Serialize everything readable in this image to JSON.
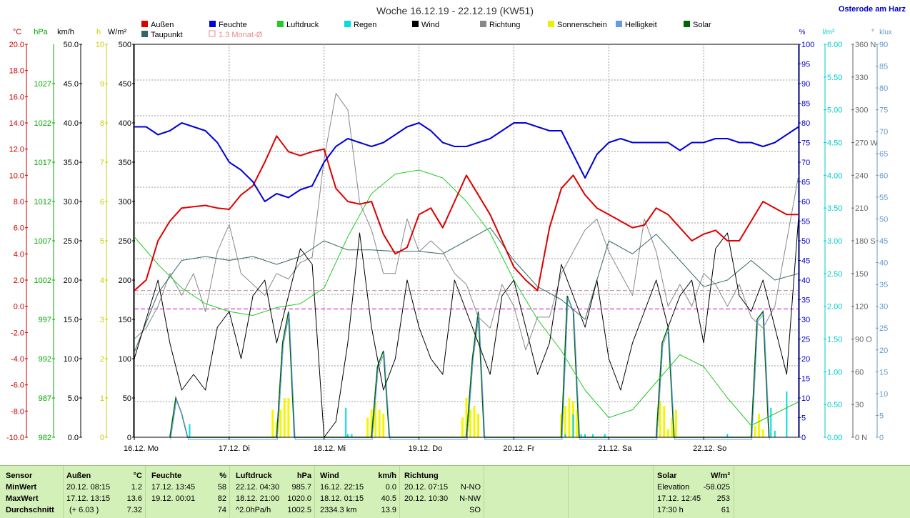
{
  "chart_data": {
    "type": "line",
    "title": "Woche 16.12.19 - 22.12.19 (KW51)",
    "location": "Osterode am Harz",
    "x_labels": [
      "16.12. Mo",
      "17.12. Di",
      "18.12. Mi",
      "19.12. Do",
      "20.12. Fr",
      "21.12. Sa",
      "22.12. So"
    ],
    "x_range_hours": [
      0,
      168
    ],
    "axes": {
      "temp": {
        "unit": "°C",
        "color": "#cc0000",
        "ticks": [
          "20.0",
          "18.0",
          "16.0",
          "14.0",
          "12.0",
          "10.0",
          "8.0",
          "6.0",
          "4.0",
          "2.0",
          "0.0",
          "-2.0",
          "-4.0",
          "-6.0",
          "-8.0",
          "-10.0"
        ],
        "range": [
          -10,
          20
        ]
      },
      "pressure": {
        "unit": "hPa",
        "color": "#00aa00",
        "ticks": [
          "1027",
          "1022",
          "1017",
          "1012",
          "1007",
          "1002",
          "997",
          "992",
          "987",
          "982"
        ]
      },
      "wind": {
        "unit": "km/h",
        "color": "#000000",
        "ticks": [
          "50.0",
          "45.0",
          "40.0",
          "35.0",
          "30.0",
          "25.0",
          "20.0",
          "15.0",
          "10.0",
          "5.0",
          "0.0"
        ],
        "range": [
          0,
          50
        ]
      },
      "sunshine": {
        "unit": "h",
        "color": "#cccc00",
        "ticks": [
          "10",
          "9",
          "8",
          "7",
          "6",
          "5",
          "4",
          "3",
          "2",
          "1",
          "0"
        ],
        "range": [
          0,
          10
        ]
      },
      "solar": {
        "unit": "W/m²",
        "color": "#000000",
        "ticks": [
          "500",
          "450",
          "400",
          "350",
          "300",
          "250",
          "200",
          "150",
          "100",
          "50",
          "0"
        ],
        "range": [
          0,
          500
        ]
      },
      "humidity": {
        "unit": "%",
        "color": "#0000cc",
        "ticks": [
          "100",
          "95",
          "90",
          "85",
          "80",
          "75",
          "70",
          "65",
          "60",
          "55",
          "50",
          "45",
          "40",
          "35",
          "30",
          "25",
          "20",
          "15",
          "10",
          "5",
          "0"
        ],
        "range": [
          0,
          100
        ]
      },
      "rain": {
        "unit": "l/m²",
        "color": "#00cccc",
        "ticks": [
          "6.00",
          "5.50",
          "5.00",
          "4.50",
          "4.00",
          "3.50",
          "3.00",
          "2.50",
          "2.00",
          "1.50",
          "1.00",
          "0.50",
          "0.00"
        ],
        "range": [
          0,
          6
        ]
      },
      "direction": {
        "unit": "°",
        "color": "#666666",
        "ticks": [
          "360 N",
          "330",
          "300",
          "270 W",
          "240",
          "210",
          "180 S",
          "150",
          "120",
          "90 O",
          "60",
          "30",
          "0 N"
        ],
        "range": [
          0,
          360
        ]
      },
      "lux": {
        "unit": "klux",
        "color": "#6699cc",
        "ticks": [
          "90",
          "85",
          "80",
          "75",
          "70",
          "65",
          "60",
          "55",
          "50",
          "45",
          "40",
          "35",
          "30",
          "25",
          "20",
          "15",
          "10",
          "5",
          "0"
        ],
        "range": [
          0,
          90
        ]
      }
    },
    "legend": [
      {
        "name": "Außen",
        "color": "#dd0000"
      },
      {
        "name": "Feuchte",
        "color": "#0000dd"
      },
      {
        "name": "Luftdruck",
        "color": "#22cc22"
      },
      {
        "name": "Regen",
        "color": "#00dddd"
      },
      {
        "name": "Wind",
        "color": "#000000"
      },
      {
        "name": "Richtung",
        "color": "#888888"
      },
      {
        "name": "Sonnenschein",
        "color": "#eeee00"
      },
      {
        "name": "Helligkeit",
        "color": "#6699ee"
      },
      {
        "name": "Solar",
        "color": "#006600"
      },
      {
        "name": "Taupunkt",
        "color": "#336666"
      },
      {
        "name": "1.3 Monat-Ø",
        "color": "#ee8888"
      }
    ],
    "series": [
      {
        "name": "Außen",
        "axis": "temp",
        "x": [
          0,
          3,
          6,
          9,
          12,
          15,
          18,
          21,
          24,
          27,
          30,
          33,
          36,
          39,
          42,
          45,
          48,
          51,
          54,
          57,
          60,
          63,
          66,
          69,
          72,
          75,
          78,
          81,
          84,
          87,
          90,
          93,
          96,
          99,
          102,
          105,
          108,
          111,
          114,
          117,
          120,
          123,
          126,
          129,
          132,
          135,
          138,
          141,
          144,
          147,
          150,
          153,
          156,
          159,
          162,
          165,
          168
        ],
        "y": [
          1.2,
          2,
          5,
          6.5,
          7.5,
          7.6,
          7.7,
          7.5,
          7.4,
          8.5,
          9.2,
          11,
          13,
          11.8,
          11.5,
          11.8,
          12,
          9,
          8,
          7.8,
          8,
          5.5,
          4,
          4.5,
          7,
          7.5,
          6,
          8,
          10,
          8.5,
          7,
          5,
          3,
          2,
          1.2,
          6,
          9,
          10,
          8.5,
          7.5,
          7,
          6.5,
          6,
          6.2,
          7.5,
          7,
          6,
          5,
          5.5,
          5.8,
          5,
          5,
          6.5,
          8,
          7.5,
          7,
          7
        ]
      },
      {
        "name": "Feuchte",
        "axis": "humidity",
        "x": [
          0,
          3,
          6,
          9,
          12,
          15,
          18,
          21,
          24,
          27,
          30,
          33,
          36,
          39,
          42,
          45,
          48,
          51,
          54,
          57,
          60,
          63,
          66,
          69,
          72,
          75,
          78,
          81,
          84,
          87,
          90,
          93,
          96,
          99,
          102,
          105,
          108,
          111,
          114,
          117,
          120,
          123,
          126,
          129,
          132,
          135,
          138,
          141,
          144,
          147,
          150,
          153,
          156,
          159,
          162,
          165,
          168
        ],
        "y": [
          79,
          79,
          77,
          78,
          80,
          79,
          78,
          75,
          70,
          68,
          65,
          60,
          62,
          61,
          63,
          64,
          70,
          74,
          76,
          75,
          74,
          75,
          77,
          79,
          80,
          78,
          75,
          74,
          74,
          75,
          76,
          78,
          80,
          80,
          79,
          78,
          78,
          72,
          66,
          72,
          75,
          76,
          75,
          75,
          75,
          75,
          73,
          75,
          75,
          76,
          76,
          75,
          75,
          74,
          75,
          77,
          79
        ]
      },
      {
        "name": "Luftdruck",
        "axis": "pressure",
        "x": [
          0,
          6,
          12,
          18,
          24,
          30,
          36,
          42,
          48,
          54,
          60,
          66,
          72,
          78,
          84,
          90,
          96,
          102,
          108,
          114,
          120,
          126,
          132,
          138,
          144,
          150,
          156,
          162,
          168
        ],
        "y": [
          1007.5,
          1004,
          1001,
          999,
          998,
          997.5,
          998.5,
          999,
          1001,
          1007.5,
          1013,
          1015.5,
          1016,
          1015,
          1012,
          1008,
          1002,
          997,
          993,
          988,
          984.5,
          985.5,
          989,
          992.5,
          991,
          987,
          983.5,
          985,
          986.5
        ]
      },
      {
        "name": "Wind",
        "axis": "wind",
        "x": [
          0,
          3,
          6,
          9,
          12,
          15,
          18,
          21,
          24,
          27,
          30,
          33,
          36,
          39,
          42,
          45,
          48,
          51,
          54,
          57,
          60,
          63,
          66,
          69,
          72,
          75,
          78,
          81,
          84,
          87,
          90,
          93,
          96,
          99,
          102,
          105,
          108,
          111,
          114,
          117,
          120,
          123,
          126,
          129,
          132,
          135,
          138,
          141,
          144,
          147,
          150,
          153,
          156,
          159,
          162,
          165,
          168
        ],
        "y": [
          10,
          15,
          20,
          12,
          6,
          8,
          6,
          14,
          16,
          10,
          18,
          20,
          12,
          18,
          24,
          22,
          0,
          2,
          12,
          26,
          14,
          6,
          10,
          20,
          14,
          10,
          8,
          20,
          16,
          12,
          8,
          18,
          20,
          14,
          8,
          12,
          22,
          18,
          14,
          20,
          10,
          6,
          12,
          16,
          20,
          14,
          18,
          20,
          12,
          24,
          26,
          18,
          16,
          20,
          14,
          8,
          28
        ]
      },
      {
        "name": "Richtung",
        "axis": "direction",
        "x": [
          0,
          3,
          6,
          9,
          12,
          15,
          18,
          21,
          24,
          27,
          30,
          33,
          36,
          39,
          42,
          45,
          48,
          51,
          54,
          57,
          60,
          63,
          66,
          69,
          72,
          75,
          78,
          81,
          84,
          87,
          90,
          93,
          96,
          99,
          102,
          105,
          108,
          111,
          114,
          117,
          120,
          123,
          126,
          129,
          132,
          135,
          138,
          141,
          144,
          147,
          150,
          153,
          156,
          159,
          162,
          165,
          168
        ],
        "y": [
          90,
          100,
          120,
          150,
          130,
          150,
          115,
          170,
          195,
          150,
          140,
          130,
          150,
          145,
          160,
          165,
          255,
          315,
          300,
          215,
          190,
          150,
          150,
          200,
          170,
          180,
          170,
          150,
          140,
          110,
          100,
          140,
          120,
          80,
          110,
          110,
          150,
          170,
          190,
          200,
          170,
          150,
          130,
          200,
          170,
          120,
          140,
          120,
          150,
          140,
          120,
          140,
          110,
          100,
          120,
          180,
          240
        ]
      },
      {
        "name": "Taupunkt",
        "axis": "temp",
        "x": [
          0,
          6,
          12,
          18,
          24,
          30,
          36,
          42,
          48,
          54,
          60,
          66,
          72,
          78,
          84,
          90,
          96,
          102,
          108,
          114,
          120,
          126,
          132,
          138,
          144,
          150,
          156,
          162,
          168
        ],
        "y": [
          -3.5,
          1,
          3.5,
          3.8,
          3.5,
          3.8,
          3.2,
          3.8,
          5,
          4.3,
          4.3,
          4.2,
          4.2,
          4,
          5,
          6,
          3.5,
          1.5,
          0.5,
          -1,
          5,
          4,
          5.5,
          3.5,
          1.5,
          2,
          3.5,
          2,
          2.5
        ]
      }
    ],
    "solar": {
      "x": [
        9,
        10.5,
        12,
        13.5,
        36,
        37.5,
        39,
        40.5,
        60,
        61.5,
        63,
        64.5,
        84,
        85.5,
        87,
        88.5,
        108,
        109.5,
        111,
        112.5,
        132,
        133.5,
        135,
        136.5,
        156,
        157.5,
        159,
        160.5
      ],
      "y": [
        0,
        50,
        30,
        0,
        0,
        120,
        160,
        0,
        0,
        90,
        110,
        0,
        0,
        100,
        160,
        0,
        0,
        180,
        160,
        0,
        0,
        120,
        140,
        0,
        0,
        150,
        160,
        0
      ]
    },
    "rain_bars": {
      "x": [
        14,
        53.5,
        54,
        55,
        109,
        111,
        113,
        114,
        116,
        119,
        150,
        161,
        162,
        165
      ],
      "y": [
        0.2,
        0.45,
        0.05,
        0.05,
        0.05,
        0.35,
        0.05,
        0.05,
        0.05,
        0.05,
        0.05,
        0.45,
        0.1,
        0.7
      ]
    },
    "sunshine_bars": {
      "x": [
        35,
        36,
        37,
        38,
        39,
        59,
        60,
        61,
        62,
        63,
        83,
        84,
        85,
        86,
        87,
        108,
        109,
        110,
        111,
        112,
        133,
        134,
        135,
        136,
        137,
        157,
        158,
        159
      ],
      "y": [
        0.7,
        0.4,
        0.7,
        1,
        1,
        0.5,
        0.7,
        0.9,
        0.7,
        0.6,
        0.5,
        1,
        0.7,
        0.8,
        0.6,
        0.6,
        0.8,
        1,
        0.9,
        0.7,
        0.9,
        0.8,
        0.2,
        0.5,
        0.7,
        0.3,
        0.6,
        0.2
      ]
    },
    "reference_lines": [
      {
        "name": "1.3 Monat-Ø",
        "axis": "temp",
        "y": 1.2,
        "color": "#cc88aa"
      },
      {
        "name": "0 °C",
        "axis": "temp",
        "y": -0.2,
        "color": "#cc00cc"
      }
    ]
  },
  "stats": {
    "headers": {
      "sensor": "Sensor",
      "aussen": "Außen",
      "aussen_unit": "°C",
      "feuchte": "Feuchte",
      "feuchte_unit": "%",
      "luftdruck": "Luftdruck",
      "luftdruck_unit": "hPa",
      "wind": "Wind",
      "wind_unit": "km/h",
      "richtung": "Richtung",
      "solar": "Solar",
      "solar_unit": "W/m²"
    },
    "row_labels": [
      "MinWert",
      "MaxWert",
      "Durchschnitt"
    ],
    "aussen": [
      [
        "20.12.  08:15",
        "1.2"
      ],
      [
        "17.12.  13:15",
        "13.6"
      ],
      [
        "(+ 6.03 )",
        "7.32"
      ]
    ],
    "feuchte": [
      [
        "17.12.  13:45",
        "58"
      ],
      [
        "19.12.  00:01",
        "82"
      ],
      [
        "",
        "74"
      ]
    ],
    "luftdruck": [
      [
        "22.12.  04:30",
        "985.7"
      ],
      [
        "18.12.  21:00",
        "1020.0"
      ],
      [
        "^2.0hPa/h",
        "1002.5"
      ]
    ],
    "wind": [
      [
        "16.12.  22:15",
        "0.0"
      ],
      [
        "18.12.  01:15",
        "40.5"
      ],
      [
        "2334.3 km",
        "13.9"
      ]
    ],
    "richtung": [
      [
        "20.12.  07:15",
        "N-NO"
      ],
      [
        "20.12.  10:30",
        "N-NW"
      ],
      [
        "",
        "SO"
      ]
    ],
    "solar": [
      [
        "Elevation",
        "-58.025"
      ],
      [
        "17.12.  12:45",
        "253"
      ],
      [
        "17:30 h",
        "61"
      ]
    ]
  }
}
